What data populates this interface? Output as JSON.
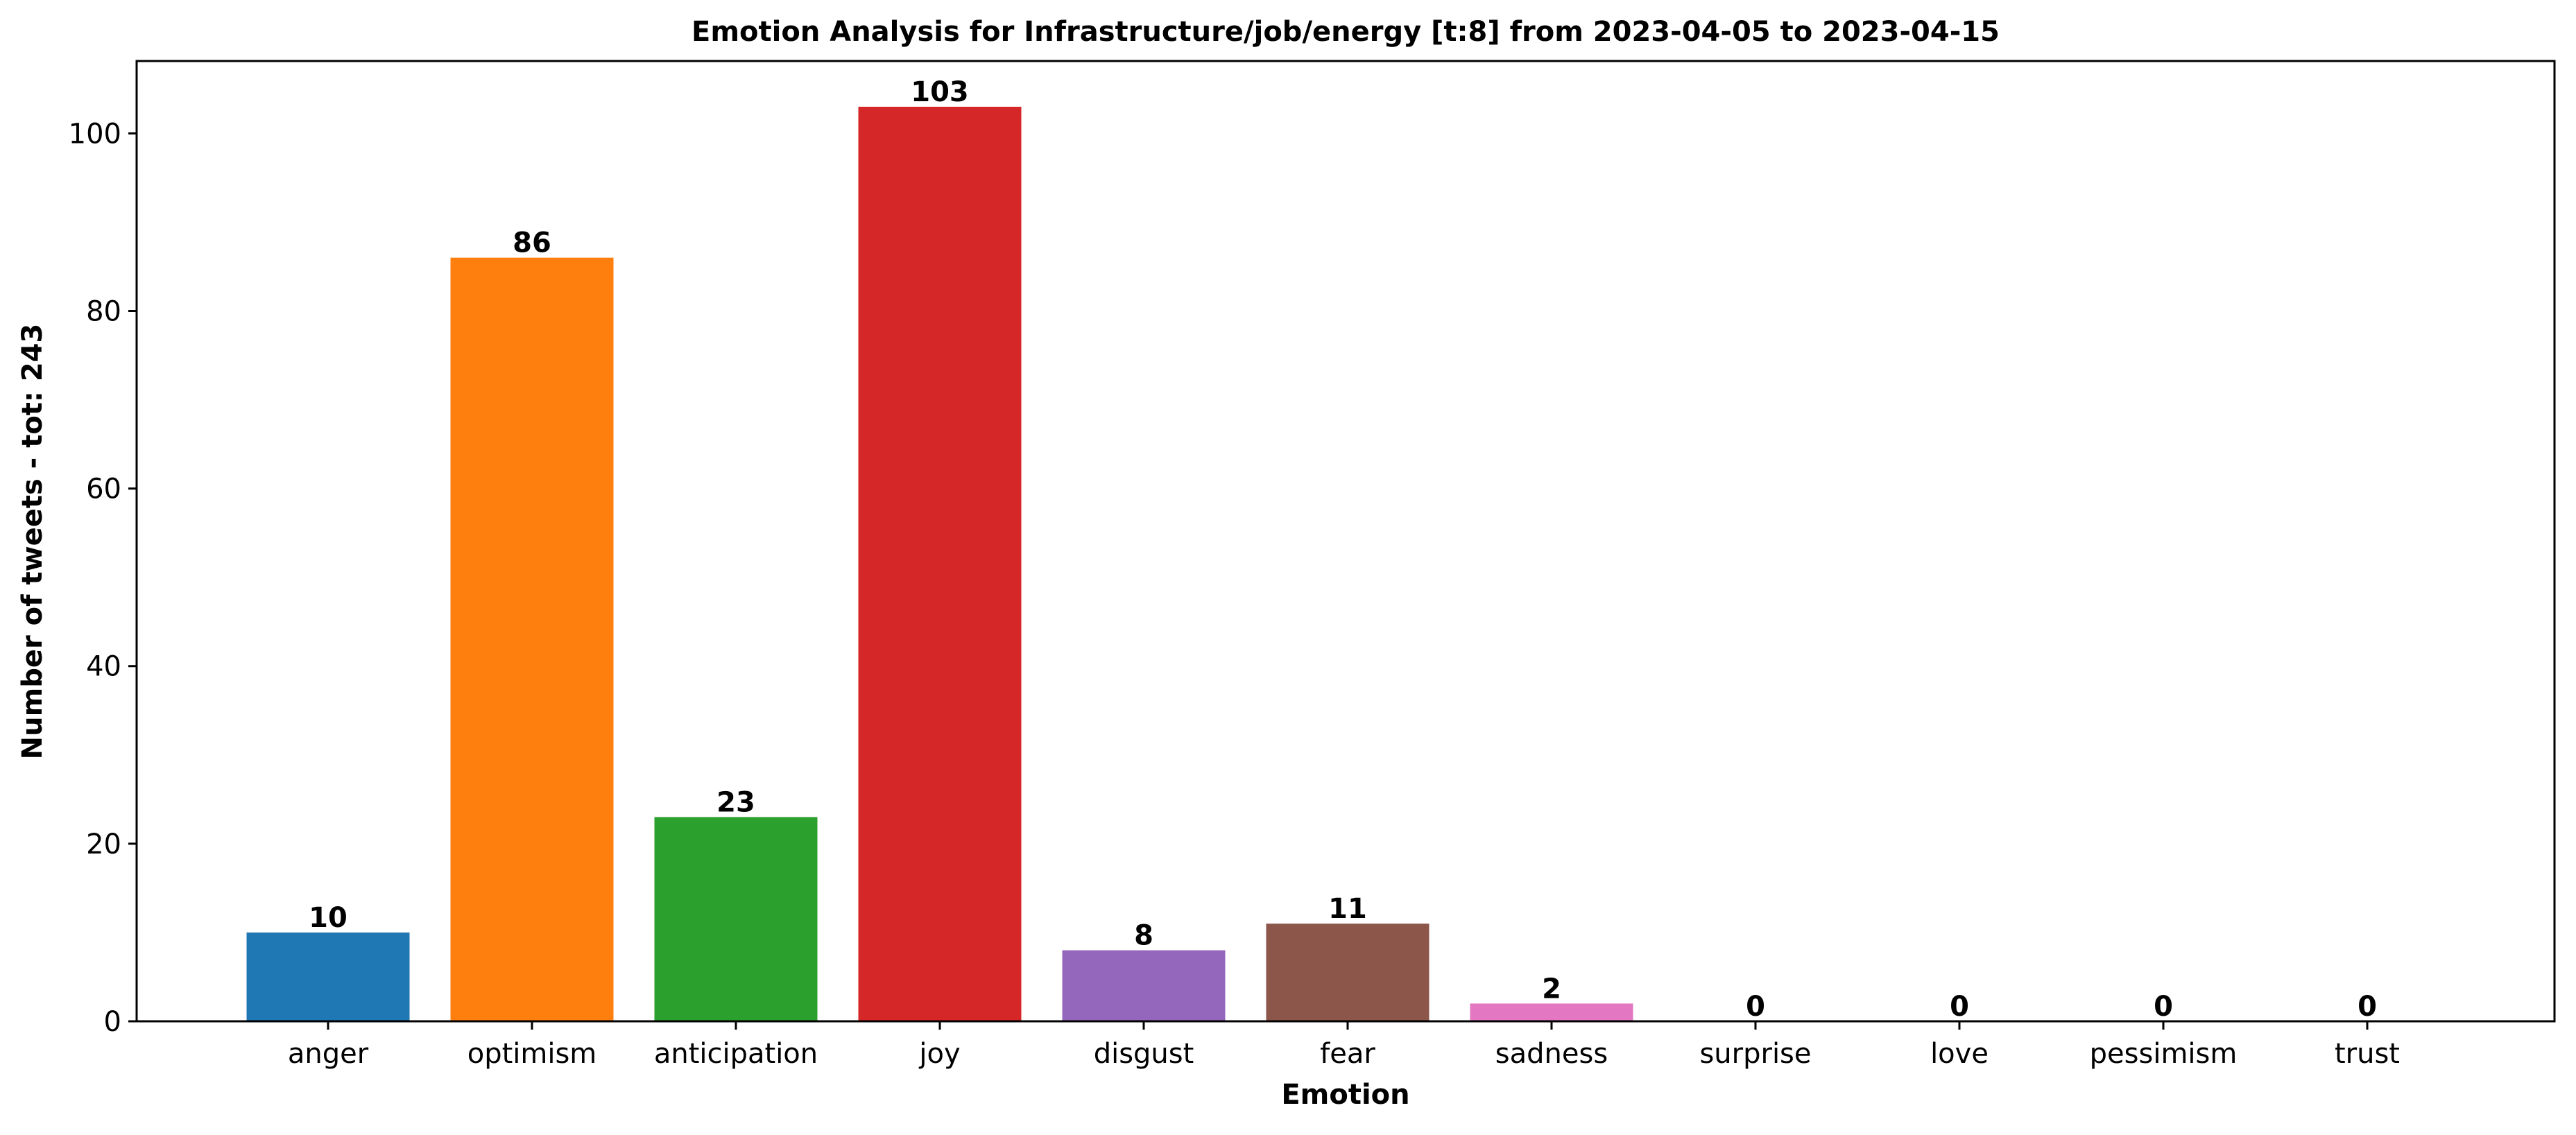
{
  "chart_data": {
    "type": "bar",
    "title": "Emotion Analysis for Infrastructure/job/energy [t:8] from 2023-04-05 to 2023-04-15",
    "xlabel": "Emotion",
    "ylabel": "Number of tweets - tot: 243",
    "categories": [
      "anger",
      "optimism",
      "anticipation",
      "joy",
      "disgust",
      "fear",
      "sadness",
      "surprise",
      "love",
      "pessimism",
      "trust"
    ],
    "values": [
      10,
      86,
      23,
      103,
      8,
      11,
      2,
      0,
      0,
      0,
      0
    ],
    "colors": [
      "#1f77b4",
      "#ff7f0e",
      "#2ca02c",
      "#d62728",
      "#9467bd",
      "#8c564b",
      "#e377c2",
      "#7f7f7f",
      "#bcbd22",
      "#17becf",
      "#1f77b4"
    ],
    "ylim": [
      0,
      108.15
    ],
    "yticks": [
      0,
      20,
      40,
      60,
      80,
      100
    ],
    "grid": false,
    "legend": "none",
    "data_labels": true
  }
}
